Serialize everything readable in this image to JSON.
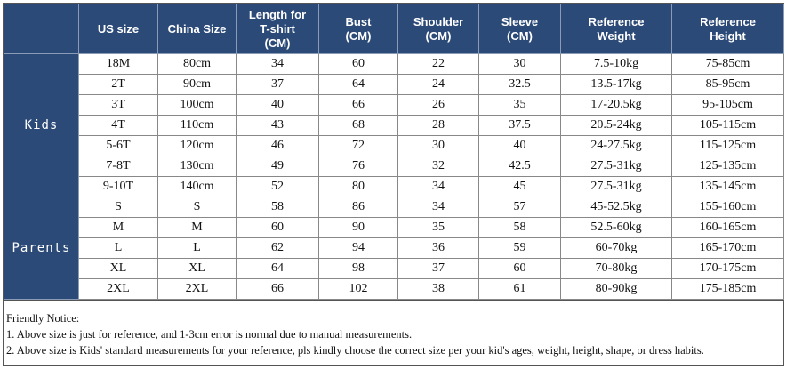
{
  "table": {
    "header": [
      "",
      "US size",
      "China Size",
      "Length for\nT-shirt\n(CM)",
      "Bust\n(CM)",
      "Shoulder\n(CM)",
      "Sleeve\n(CM)",
      "Reference\nWeight",
      "Reference\nHeight"
    ],
    "groups": [
      {
        "label": "Kids",
        "rows": [
          [
            "18M",
            "80cm",
            34,
            60,
            22,
            30,
            "7.5-10kg",
            "75-85cm"
          ],
          [
            "2T",
            "90cm",
            37,
            64,
            24,
            32.5,
            "13.5-17kg",
            "85-95cm"
          ],
          [
            "3T",
            "100cm",
            40,
            66,
            26,
            35,
            "17-20.5kg",
            "95-105cm"
          ],
          [
            "4T",
            "110cm",
            43,
            68,
            28,
            37.5,
            "20.5-24kg",
            "105-115cm"
          ],
          [
            "5-6T",
            "120cm",
            46,
            72,
            30,
            40,
            "24-27.5kg",
            "115-125cm"
          ],
          [
            "7-8T",
            "130cm",
            49,
            76,
            32,
            42.5,
            "27.5-31kg",
            "125-135cm"
          ],
          [
            "9-10T",
            "140cm",
            52,
            80,
            34,
            45,
            "27.5-31kg",
            "135-145cm"
          ]
        ]
      },
      {
        "label": "Parents",
        "rows": [
          [
            "S",
            "S",
            58,
            86,
            34,
            57,
            "45-52.5kg",
            "155-160cm"
          ],
          [
            "M",
            "M",
            60,
            90,
            35,
            58,
            "52.5-60kg",
            "160-165cm"
          ],
          [
            "L",
            "L",
            62,
            94,
            36,
            59,
            "60-70kg",
            "165-170cm"
          ],
          [
            "XL",
            "XL",
            64,
            98,
            37,
            60,
            "70-80kg",
            "170-175cm"
          ],
          [
            "2XL",
            "2XL",
            66,
            102,
            38,
            61,
            "80-90kg",
            "175-185cm"
          ]
        ]
      }
    ]
  },
  "notice": {
    "title": "Friendly Notice:",
    "lines": [
      "1. Above size is just for reference, and 1-3cm error is normal due to manual measurements.",
      "2. Above size is Kids' standard measurements for your reference, pls kindly choose the correct size per your kid's ages, weight, height, shape, or dress habits."
    ]
  }
}
